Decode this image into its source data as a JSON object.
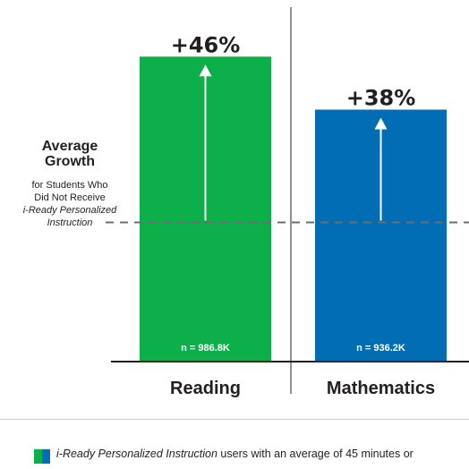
{
  "chart_data": {
    "type": "bar",
    "categories": [
      "Reading",
      "Mathematics"
    ],
    "values": [
      46,
      38
    ],
    "value_labels": [
      "+46%",
      "+38%"
    ],
    "sample_labels": [
      "n = 986.8K",
      "n = 936.2K"
    ],
    "bar_colors": [
      "#0daf4b",
      "#006db5"
    ],
    "reference_line": {
      "title_lines": [
        "Average",
        "Growth"
      ],
      "subtitle_lines": [
        "for Students Who",
        "Did Not Receive"
      ],
      "subtitle_italic_lines": [
        "i-Ready Personalized",
        "Instruction"
      ],
      "value": 21,
      "style": "dashed",
      "color": "#6d6e71"
    },
    "ylim": [
      0,
      54
    ],
    "grid": false
  },
  "legend": {
    "italic_text": "i-Ready Personalized Instruction",
    "text": " users with an average of 45 minutes or",
    "colors": [
      "#0daf4b",
      "#006db5"
    ]
  }
}
